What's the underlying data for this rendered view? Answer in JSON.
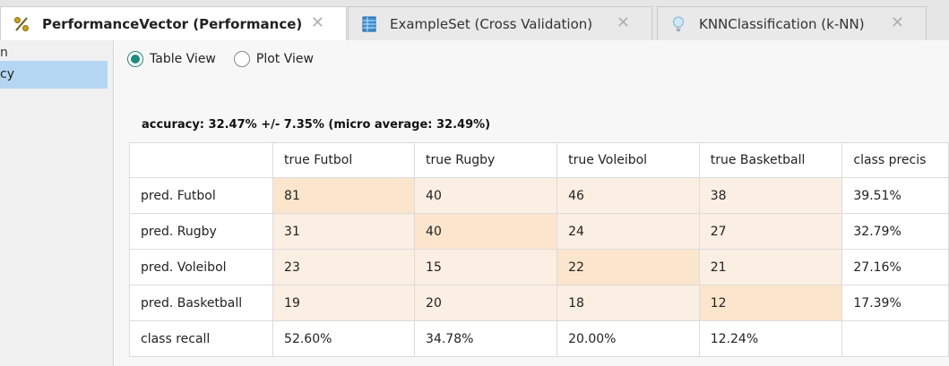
{
  "tabs": [
    {
      "label": "PerformanceVector (Performance)",
      "icon": "percent-icon",
      "close": "✕"
    },
    {
      "label": "ExampleSet (Cross Validation)",
      "icon": "table-icon",
      "close": "✕"
    },
    {
      "label": "KNNClassification (k-NN)",
      "icon": "lightbulb-icon",
      "close": "✕"
    }
  ],
  "sidebar": {
    "header": "n",
    "items": [
      {
        "label": "cy"
      }
    ]
  },
  "views": {
    "table": "Table View",
    "plot": "Plot View",
    "selected": "table"
  },
  "accuracy": "accuracy: 32.47% +/- 7.35% (micro average: 32.49%)",
  "matrix": {
    "header": [
      "",
      "true Futbol",
      "true Rugby",
      "true Voleibol",
      "true Basketball",
      "class precis"
    ],
    "rows": [
      {
        "label": "pred. Futbol",
        "cells": [
          "81",
          "40",
          "46",
          "38",
          "39.51%"
        ]
      },
      {
        "label": "pred. Rugby",
        "cells": [
          "31",
          "40",
          "24",
          "27",
          "32.79%"
        ]
      },
      {
        "label": "pred. Voleibol",
        "cells": [
          "23",
          "15",
          "22",
          "21",
          "27.16%"
        ]
      },
      {
        "label": "pred. Basketball",
        "cells": [
          "19",
          "20",
          "18",
          "12",
          "17.39%"
        ]
      },
      {
        "label": "class recall",
        "cells": [
          "52.60%",
          "34.78%",
          "20.00%",
          "12.24%",
          ""
        ]
      }
    ]
  },
  "colors": {
    "accent": "#1f8a7e",
    "selection": "#b5d6f3",
    "cell_diagonal": "#fbe5cc",
    "cell_offdiagonal": "#fbeee2"
  }
}
